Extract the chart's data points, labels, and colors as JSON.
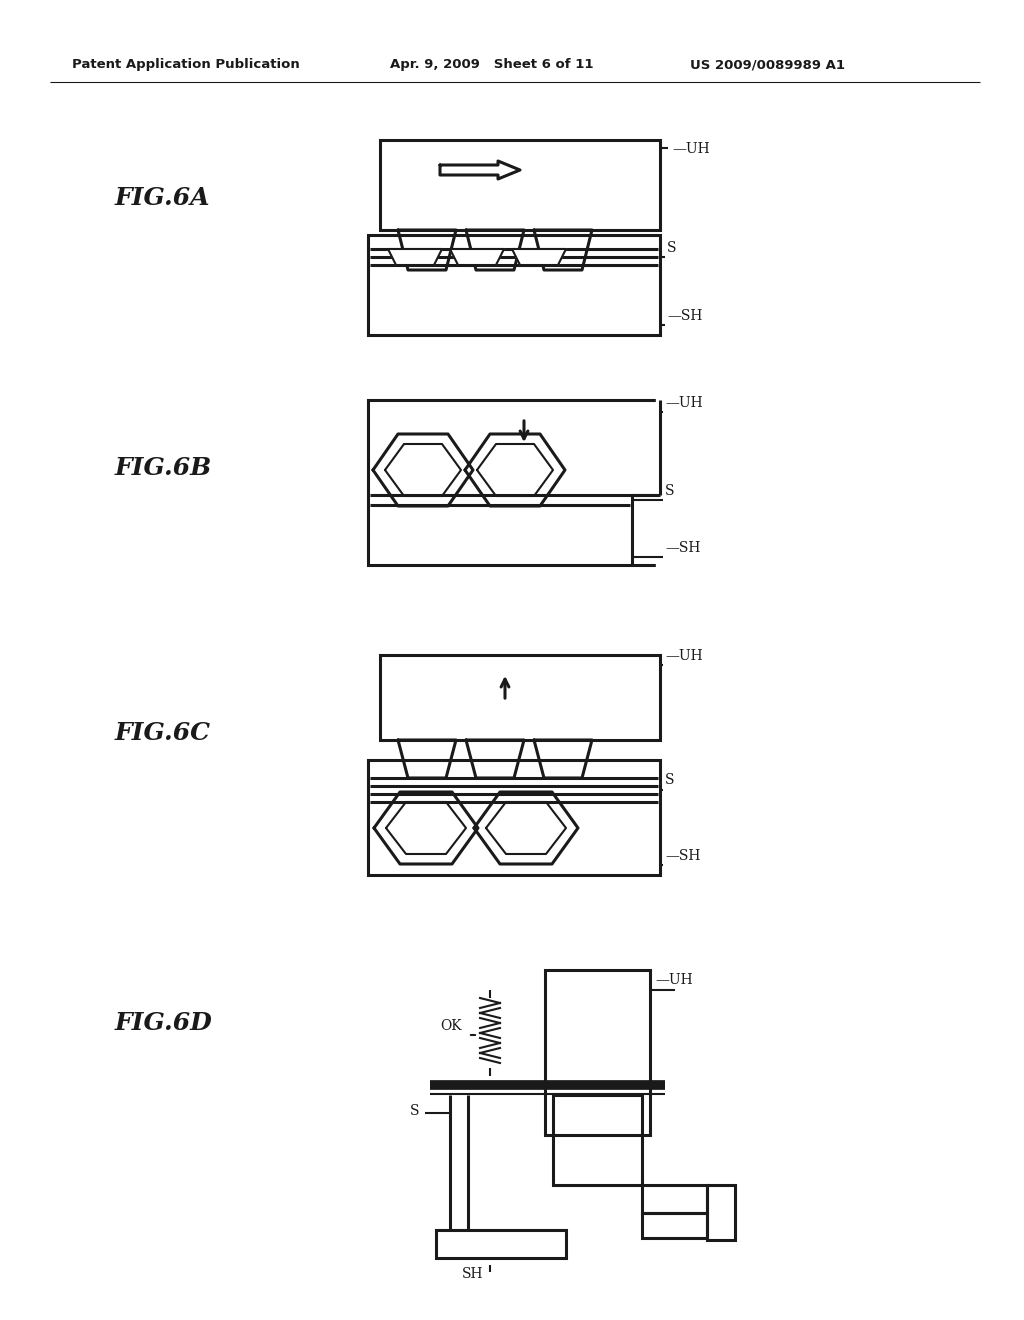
{
  "bg_color": "#ffffff",
  "header_left": "Patent Application Publication",
  "header_mid": "Apr. 9, 2009   Sheet 6 of 11",
  "header_right": "US 2009/0089989 A1",
  "line_color": "#1a1a1a",
  "lw": 1.5,
  "lw2": 2.2
}
